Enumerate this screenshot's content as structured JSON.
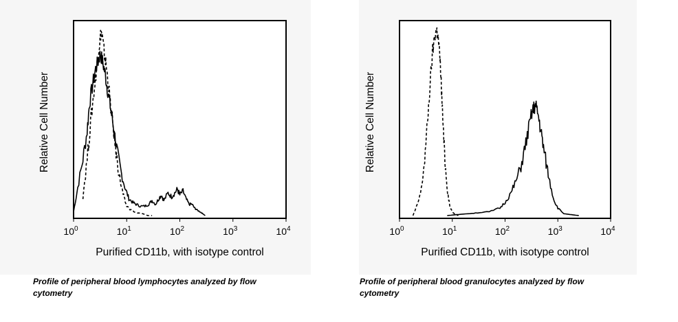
{
  "chart_data": [
    {
      "type": "line",
      "xlabel": "Purified CD11b, with isotype control",
      "ylabel": "Relative Cell Number",
      "x_scale": "log10",
      "xlim": [
        1,
        10000
      ],
      "ylim": [
        0,
        100
      ],
      "x_ticks": [
        {
          "base": "10",
          "exp": "0",
          "value": 1
        },
        {
          "base": "10",
          "exp": "1",
          "value": 10
        },
        {
          "base": "10",
          "exp": "2",
          "value": 100
        },
        {
          "base": "10",
          "exp": "3",
          "value": 1000
        },
        {
          "base": "10",
          "exp": "4",
          "value": 10000
        }
      ],
      "grid": false,
      "series": [
        {
          "style": "solid",
          "x": [
            1.0,
            1.2,
            1.5,
            1.8,
            2.0,
            2.3,
            2.6,
            2.9,
            3.2,
            3.5,
            3.9,
            4.3,
            4.8,
            5.3,
            6.0,
            6.8,
            8.0,
            9.5,
            11,
            13,
            15,
            18,
            22,
            26,
            30,
            35,
            40,
            45,
            50,
            60,
            70,
            80,
            90,
            100,
            115,
            130,
            150,
            170,
            190,
            210,
            240,
            270,
            300
          ],
          "y": [
            2,
            15,
            30,
            45,
            60,
            70,
            78,
            82,
            86,
            82,
            76,
            68,
            60,
            52,
            42,
            32,
            22,
            14,
            9,
            7,
            6,
            5,
            5,
            6,
            8,
            6,
            9,
            11,
            8,
            12,
            10,
            12,
            14,
            11,
            13,
            9,
            6,
            6,
            4,
            3,
            2,
            1,
            0
          ]
        },
        {
          "style": "dashed",
          "x": [
            1.5,
            1.8,
            2.1,
            2.4,
            2.7,
            2.9,
            3.1,
            3.3,
            3.5,
            3.8,
            4.1,
            4.5,
            5.0,
            5.6,
            6.3,
            7.0,
            8.0,
            9.0,
            10,
            12,
            15,
            20,
            25,
            30
          ],
          "y": [
            10,
            30,
            50,
            65,
            78,
            86,
            92,
            98,
            94,
            86,
            80,
            70,
            58,
            46,
            34,
            24,
            15,
            9,
            5,
            3,
            1.5,
            1,
            0,
            0
          ]
        }
      ]
    },
    {
      "type": "line",
      "xlabel": "Purified CD11b, with isotype control",
      "ylabel": "Relative Cell Number",
      "x_scale": "log10",
      "xlim": [
        1,
        10000
      ],
      "ylim": [
        0,
        100
      ],
      "x_ticks": [
        {
          "base": "10",
          "exp": "0",
          "value": 1
        },
        {
          "base": "10",
          "exp": "1",
          "value": 10
        },
        {
          "base": "10",
          "exp": "2",
          "value": 100
        },
        {
          "base": "10",
          "exp": "3",
          "value": 1000
        },
        {
          "base": "10",
          "exp": "4",
          "value": 10000
        }
      ],
      "grid": false,
      "series": [
        {
          "style": "dashed",
          "x": [
            1.8,
            2.2,
            2.6,
            3.0,
            3.4,
            3.8,
            4.2,
            4.6,
            5.0,
            5.3,
            5.6,
            6.0,
            6.4,
            6.9,
            7.5,
            8.2,
            9.0,
            10,
            11,
            13
          ],
          "y": [
            0,
            6,
            14,
            30,
            50,
            70,
            86,
            95,
            99,
            96,
            90,
            78,
            60,
            40,
            24,
            12,
            5,
            2,
            1,
            0
          ]
        },
        {
          "style": "solid",
          "x": [
            8,
            12,
            20,
            30,
            50,
            80,
            100,
            130,
            160,
            200,
            240,
            280,
            320,
            350,
            380,
            420,
            470,
            520,
            600,
            700,
            850,
            1000,
            1300,
            1800,
            2500
          ],
          "y": [
            0,
            0.5,
            1,
            1.5,
            2,
            4,
            7,
            12,
            18,
            26,
            36,
            46,
            54,
            57,
            58,
            54,
            46,
            38,
            28,
            18,
            8,
            4,
            1,
            0.5,
            0
          ]
        }
      ]
    }
  ],
  "captions": {
    "left": "Profile of peripheral blood lymphocytes analyzed by flow cytometry",
    "right": "Profile of peripheral blood granulocytes analyzed by flow cytometry"
  }
}
